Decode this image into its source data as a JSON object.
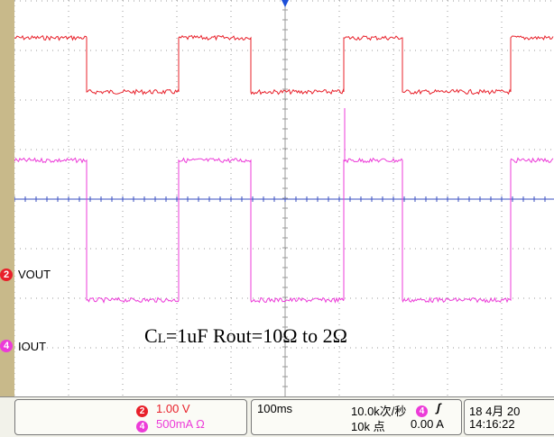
{
  "channels": {
    "ch2": {
      "number": "2",
      "label": "VOUT",
      "color": "#e8202a"
    },
    "ch4": {
      "number": "4",
      "label": "IOUT",
      "color": "#ec3bd8"
    }
  },
  "annotation": {
    "c": "C",
    "sub": "L",
    "rest": "=1uF Rout=10Ω to 2Ω"
  },
  "status": {
    "ch2_scale": "1.00 V",
    "ch4_scale": "500mA Ω",
    "timebase": "100ms",
    "sample_rate": "10.0k次/秒",
    "record_length": "10k 点",
    "trigger_channel": "4",
    "trigger_slope": "ʃ",
    "trigger_level": "0.00 A",
    "date": "18 4月 20",
    "time": "14:16:22"
  },
  "colors": {
    "grid": "#999999",
    "axis": "#3a4fc0",
    "trigger_marker": "#1d4fd8"
  }
}
